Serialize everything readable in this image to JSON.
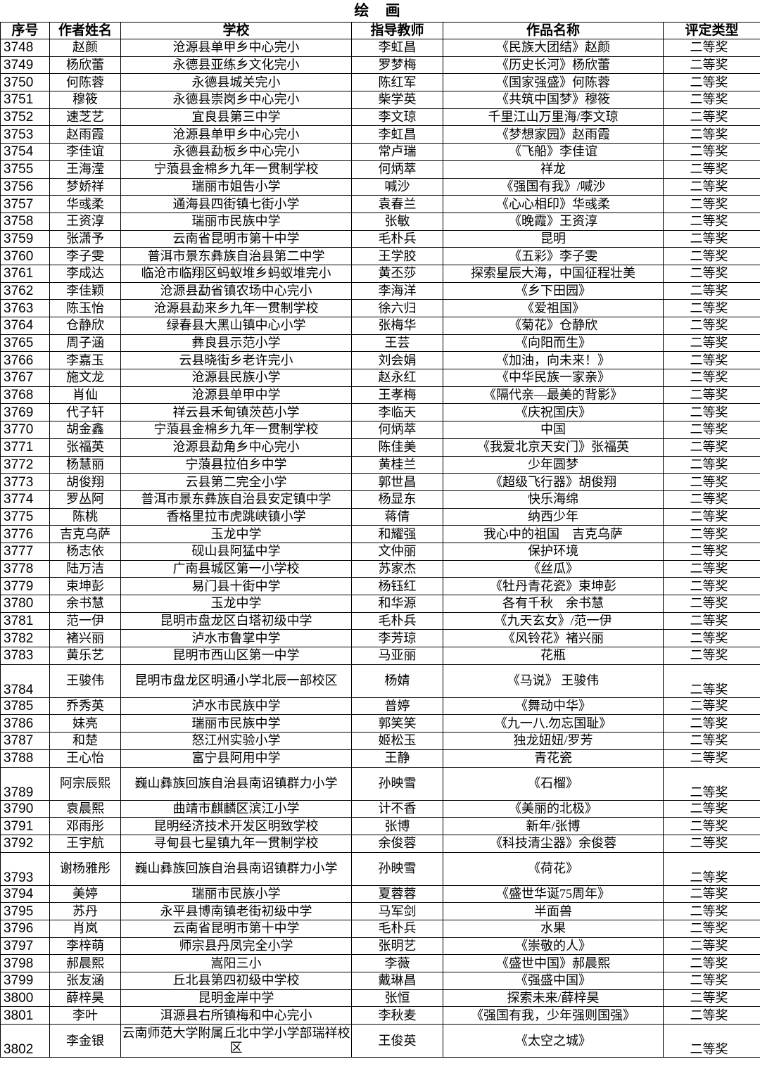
{
  "title": "绘 画",
  "headers": [
    "序号",
    "作者姓名",
    "学校",
    "指导教师",
    "作品名称",
    "评定类型"
  ],
  "rows": [
    [
      "3748",
      "赵颜",
      "沧源县单甲乡中心完小",
      "李虹昌",
      "《民族大团结》赵颜",
      "二等奖"
    ],
    [
      "3749",
      "杨欣蕾",
      "永德县亚练乡文化完小",
      "罗梦梅",
      "《历史长河》杨欣蕾",
      "二等奖"
    ],
    [
      "3750",
      "何陈蓉",
      "永德县城关完小",
      "陈红军",
      "《国家强盛》何陈蓉",
      "二等奖"
    ],
    [
      "3751",
      "穆筱",
      "永德县崇岗乡中心完小",
      "柴学英",
      "《共筑中国梦》穆筱",
      "二等奖"
    ],
    [
      "3752",
      "速芝艺",
      "宜良县第三中学",
      "李文琼",
      "千里江山万里海/李文琼",
      "二等奖"
    ],
    [
      "3753",
      "赵雨霞",
      "沧源县单甲乡中心完小",
      "李虹昌",
      "《梦想家园》赵雨霞",
      "二等奖"
    ],
    [
      "3754",
      "李佳谊",
      "永德县勐板乡中心完小",
      "常卢瑞",
      "《飞船》李佳谊",
      "二等奖"
    ],
    [
      "3755",
      "王海滢",
      "宁蒗县金棉乡九年一贯制学校",
      "何炳萃",
      "祥龙",
      "二等奖"
    ],
    [
      "3756",
      "梦娇祥",
      "瑞丽市姐告小学",
      "喊沙",
      "《强国有我》/喊沙",
      "二等奖"
    ],
    [
      "3757",
      "华彧柔",
      "通海县四街镇七街小学",
      "袁春兰",
      "《心心相印》华彧柔",
      "二等奖"
    ],
    [
      "3758",
      "王资淳",
      "瑞丽市民族中学",
      "张敏",
      "《晚霞》王资淳",
      "二等奖"
    ],
    [
      "3759",
      "张潇予",
      "云南省昆明市第十中学",
      "毛朴兵",
      "昆明",
      "二等奖"
    ],
    [
      "3760",
      "李子雯",
      "普洱市景东彝族自治县第二中学",
      "王学胶",
      "《五彩》李子雯",
      "二等奖"
    ],
    [
      "3761",
      "李成达",
      "临沧市临翔区蚂蚁堆乡蚂蚁堆完小",
      "黄丕莎",
      "探索星辰大海，中国征程壮美",
      "二等奖"
    ],
    [
      "3762",
      "李佳颖",
      "沧源县勐省镇农场中心完小",
      "李海洋",
      "《乡下田园》",
      "二等奖"
    ],
    [
      "3763",
      "陈玉怡",
      "沧源县勐来乡九年一贯制学校",
      "徐六归",
      "《爱祖国》",
      "二等奖"
    ],
    [
      "3764",
      "仓静欣",
      "绿春县大黑山镇中心小学",
      "张梅华",
      "《菊花》仓静欣",
      "二等奖"
    ],
    [
      "3765",
      "周子涵",
      "彝良县示范小学",
      "王芸",
      "《向阳而生》",
      "二等奖"
    ],
    [
      "3766",
      "李嘉玉",
      "云县晓街乡老许完小",
      "刘会娟",
      "《加油，向未来！》",
      "二等奖"
    ],
    [
      "3767",
      "施文龙",
      "沧源县民族小学",
      "赵永红",
      "《中华民族一家亲》",
      "二等奖"
    ],
    [
      "3768",
      "肖仙",
      "沧源县单甲中学",
      "王孝梅",
      "《隔代亲—最美的背影》",
      "二等奖"
    ],
    [
      "3769",
      "代子轩",
      "祥云县禾甸镇茨芭小学",
      "李临天",
      "《庆祝国庆》",
      "二等奖"
    ],
    [
      "3770",
      "胡金鑫",
      "宁蒗县金棉乡九年一贯制学校",
      "何炳萃",
      "中国",
      "二等奖"
    ],
    [
      "3771",
      "张福英",
      "沧源县勐角乡中心完小",
      "陈佳美",
      "《我爱北京天安门》张福英",
      "二等奖"
    ],
    [
      "3772",
      "杨慧丽",
      "宁蒗县拉伯乡中学",
      "黄桂兰",
      "少年圆梦",
      "二等奖"
    ],
    [
      "3773",
      "胡俊翔",
      "云县第二完全小学",
      "郭世昌",
      "《超级飞行器》胡俊翔",
      "二等奖"
    ],
    [
      "3774",
      "罗丛阿",
      "普洱市景东彝族自治县安定镇中学",
      "杨显东",
      "快乐海绵",
      "二等奖"
    ],
    [
      "3775",
      "陈桃",
      "香格里拉市虎跳峡镇小学",
      "蒋倩",
      "纳西少年",
      "二等奖"
    ],
    [
      "3776",
      "吉克乌萨",
      "玉龙中学",
      "和耀强",
      "我心中的祖国　吉克乌萨",
      "二等奖"
    ],
    [
      "3777",
      "杨志依",
      "砚山县阿猛中学",
      "文仲丽",
      "保护环境",
      "二等奖"
    ],
    [
      "3778",
      "陆万洁",
      "广南县城区第一小学校",
      "苏家杰",
      "《丝瓜》",
      "二等奖"
    ],
    [
      "3779",
      "束坤彭",
      "易门县十街中学",
      "杨钰红",
      "《牡丹青花瓷》束坤彭",
      "二等奖"
    ],
    [
      "3780",
      "余书慧",
      "玉龙中学",
      "和华源",
      "各有千秋　余书慧",
      "二等奖"
    ],
    [
      "3781",
      "范一伊",
      "昆明市盘龙区白塔初级中学",
      "毛朴兵",
      "《九天玄女》/范一伊",
      "二等奖"
    ],
    [
      "3782",
      "褚兴丽",
      "泸水市鲁掌中学",
      "李芳琼",
      "《风铃花》褚兴丽",
      "二等奖"
    ],
    [
      "3783",
      "黄乐艺",
      "昆明市西山区第一中学",
      "马亚丽",
      "花瓶",
      "二等奖"
    ],
    [
      "3784",
      "王骏伟",
      "昆明市盘龙区明通小学北辰一部校区",
      "杨婧",
      "《马说》 王骏伟",
      "二等奖"
    ],
    [
      "3785",
      "乔秀英",
      "泸水市民族中学",
      "普婷",
      "《舞动中华》",
      "二等奖"
    ],
    [
      "3786",
      "妹亮",
      "瑞丽市民族中学",
      "郭笑笑",
      "《九一八.勿忘国耻》",
      "二等奖"
    ],
    [
      "3787",
      "和楚",
      "怒江州实验小学",
      "姬松玉",
      "独龙妞妞/罗芳",
      "二等奖"
    ],
    [
      "3788",
      "王心怡",
      "富宁县阿用中学",
      "王静",
      "青花瓷",
      "二等奖"
    ],
    [
      "3789",
      "阿宗辰熙",
      "巍山彝族回族自治县南诏镇群力小学",
      "孙映雪",
      "《石榴》",
      "二等奖"
    ],
    [
      "3790",
      "袁晨熙",
      "曲靖市麒麟区滨江小学",
      "计不香",
      "《美丽的北极》",
      "二等奖"
    ],
    [
      "3791",
      "邓雨彤",
      "昆明经济技术开发区明致学校",
      "张博",
      "新年/张博",
      "二等奖"
    ],
    [
      "3792",
      "王宇航",
      "寻甸县七星镇九年一贯制学校",
      "余俊蓉",
      "《科技清尘器》余俊蓉",
      "二等奖"
    ],
    [
      "3793",
      "谢杨雅彤",
      "巍山彝族回族自治县南诏镇群力小学",
      "孙映雪",
      "《荷花》",
      "二等奖"
    ],
    [
      "3794",
      "美婷",
      "瑞丽市民族小学",
      "夏蓉蓉",
      "《盛世华诞75周年》",
      "二等奖"
    ],
    [
      "3795",
      "苏丹",
      "永平县博南镇老街初级中学",
      "马军剑",
      "半面兽",
      "二等奖"
    ],
    [
      "3796",
      "肖岚",
      "云南省昆明市第十中学",
      "毛朴兵",
      "水果",
      "二等奖"
    ],
    [
      "3797",
      "李梓萌",
      "师宗县丹凤完全小学",
      "张明艺",
      "《崇敬的人》",
      "二等奖"
    ],
    [
      "3798",
      "郝晨熙",
      "嵩阳三小",
      "李薇",
      "《盛世中国》郝晨熙",
      "二等奖"
    ],
    [
      "3799",
      "张友涵",
      "丘北县第四初级中学校",
      "戴琳昌",
      "《强盛中国》",
      "二等奖"
    ],
    [
      "3800",
      "薛梓昊",
      "昆明金岸中学",
      "张恒",
      "探索未来/薛梓昊",
      "二等奖"
    ],
    [
      "3801",
      "李叶",
      "洱源县右所镇梅和中心完小",
      "李秋麦",
      "《强国有我，少年强则国强》",
      "二等奖"
    ],
    [
      "3802",
      "李金银",
      "云南师范大学附属丘北中学小学部瑞祥校区",
      "王俊英",
      "《太空之城》",
      "二等奖"
    ]
  ]
}
